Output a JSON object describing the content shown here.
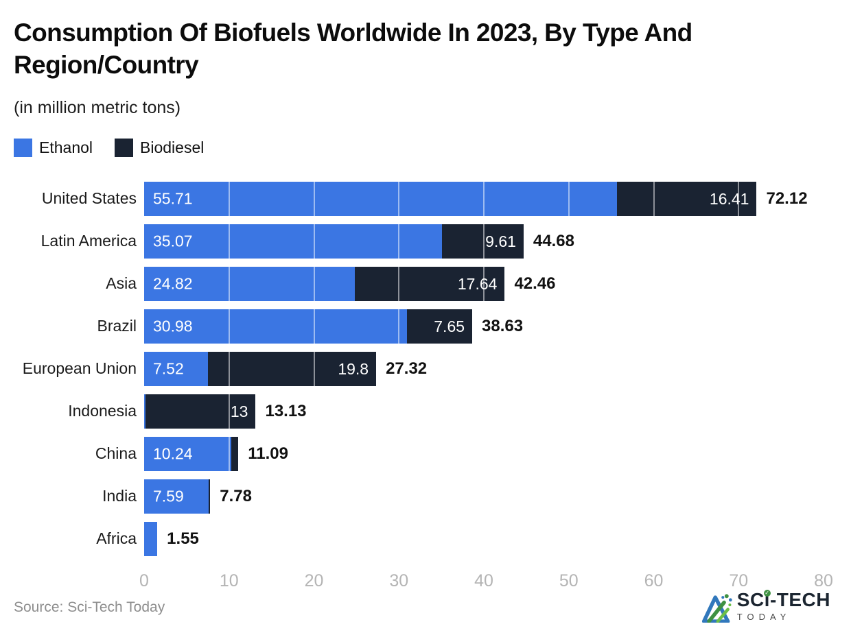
{
  "title": {
    "line1": "Consumption Of Biofuels Worldwide In 2023, By Type And",
    "line2": "Region/Country"
  },
  "subtitle": "(in million metric tons)",
  "legend": [
    {
      "label": "Ethanol",
      "color": "#3B76E3"
    },
    {
      "label": "Biodiesel",
      "color": "#1A2332"
    }
  ],
  "chart_data": {
    "type": "bar",
    "orientation": "horizontal-stacked",
    "title": "Consumption Of Biofuels Worldwide In 2023, By Type And Region/Country",
    "units": "million metric tons",
    "categories": [
      "United States",
      "Latin America",
      "Asia",
      "Brazil",
      "European Union",
      "Indonesia",
      "China",
      "India",
      "Africa"
    ],
    "series": [
      {
        "name": "Ethanol",
        "color": "#3B76E3",
        "values": [
          55.71,
          35.07,
          24.82,
          30.98,
          7.52,
          0.13,
          10.24,
          7.59,
          1.55
        ]
      },
      {
        "name": "Biodiesel",
        "color": "#1A2332",
        "values": [
          16.41,
          9.61,
          17.64,
          7.65,
          19.8,
          13,
          0.85,
          0.19,
          0
        ]
      }
    ],
    "totals": [
      72.12,
      44.68,
      42.46,
      38.63,
      27.32,
      13.13,
      11.09,
      7.78,
      1.55
    ],
    "bar_labels": {
      "ethanol": [
        "55.71",
        "35.07",
        "24.82",
        "30.98",
        "7.52",
        "",
        "10.24",
        "7.59",
        ""
      ],
      "biodiesel": [
        "16.41",
        "9.61",
        "17.64",
        "7.65",
        "19.8",
        "13",
        "",
        "",
        ""
      ],
      "totals": [
        "72.12",
        "44.68",
        "42.46",
        "38.63",
        "27.32",
        "13.13",
        "11.09",
        "7.78",
        "1.55"
      ]
    },
    "xlim": [
      0,
      80
    ],
    "x_ticks": [
      "0",
      "10",
      "20",
      "30",
      "40",
      "50",
      "60",
      "70",
      "80"
    ],
    "grid": "vertical gridlines every 10 units, translucent white over bars",
    "legend_position": "top-left"
  },
  "source": "Source: Sci-Tech Today",
  "logo": {
    "brand_part1": "SC",
    "brand_part2": "ı",
    "brand_part3": "-TECH",
    "brand_check": "✓",
    "bottom": "TODAY"
  }
}
